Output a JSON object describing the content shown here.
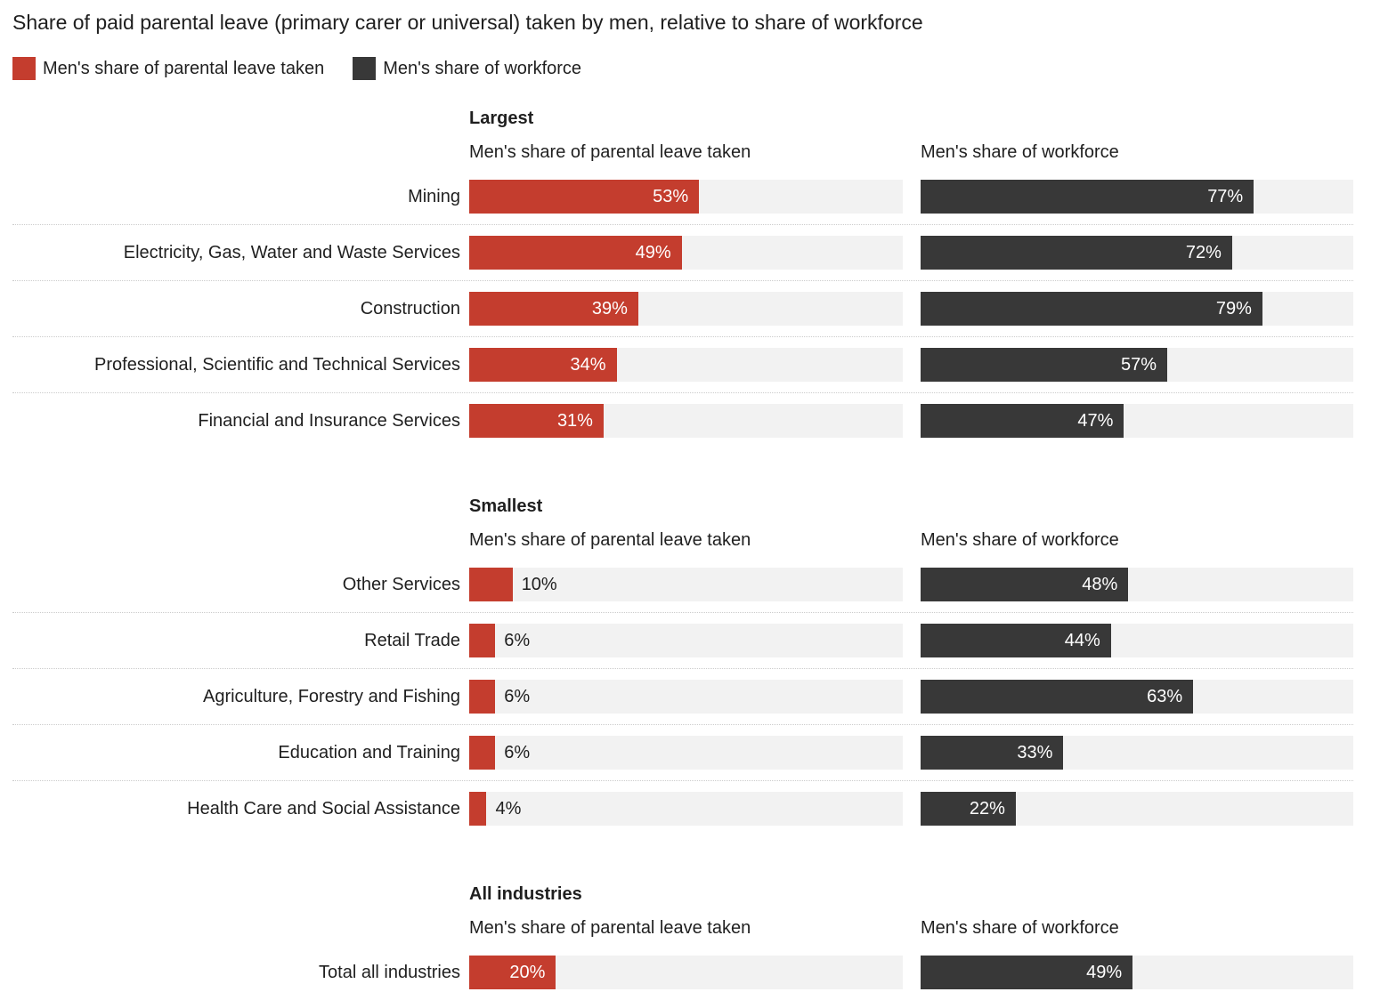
{
  "title": "Share of paid parental leave (primary carer or universal) taken by men, relative to share of workforce",
  "legend": {
    "items": [
      {
        "label": "Men's share of parental leave taken",
        "color": "#c43d2e"
      },
      {
        "label": "Men's share of workforce",
        "color": "#383838"
      }
    ]
  },
  "chart_data": {
    "type": "bar",
    "orientation": "horizontal",
    "unit": "%",
    "xlim": [
      0,
      100
    ],
    "grid": false,
    "series_names": [
      "Men's share of parental leave taken",
      "Men's share of workforce"
    ],
    "column_headers": [
      "Men's share of parental leave taken",
      "Men's share of workforce"
    ],
    "colors": {
      "leave": "#c43d2e",
      "workforce": "#383838",
      "track": "#f2f2f2"
    },
    "label_inside_threshold": 15,
    "sections": [
      {
        "heading": "Largest",
        "rows": [
          {
            "label": "Mining",
            "leave": 53,
            "workforce": 77
          },
          {
            "label": "Electricity, Gas, Water and Waste Services",
            "leave": 49,
            "workforce": 72
          },
          {
            "label": "Construction",
            "leave": 39,
            "workforce": 79
          },
          {
            "label": "Professional, Scientific and Technical Services",
            "leave": 34,
            "workforce": 57
          },
          {
            "label": "Financial and Insurance Services",
            "leave": 31,
            "workforce": 47
          }
        ]
      },
      {
        "heading": "Smallest",
        "rows": [
          {
            "label": "Other Services",
            "leave": 10,
            "workforce": 48
          },
          {
            "label": "Retail Trade",
            "leave": 6,
            "workforce": 44
          },
          {
            "label": "Agriculture, Forestry and Fishing",
            "leave": 6,
            "workforce": 63
          },
          {
            "label": "Education and Training",
            "leave": 6,
            "workforce": 33
          },
          {
            "label": "Health Care and Social Assistance",
            "leave": 4,
            "workforce": 22
          }
        ]
      },
      {
        "heading": "All industries",
        "rows": [
          {
            "label": "Total all industries",
            "leave": 20,
            "workforce": 49
          }
        ]
      }
    ]
  }
}
